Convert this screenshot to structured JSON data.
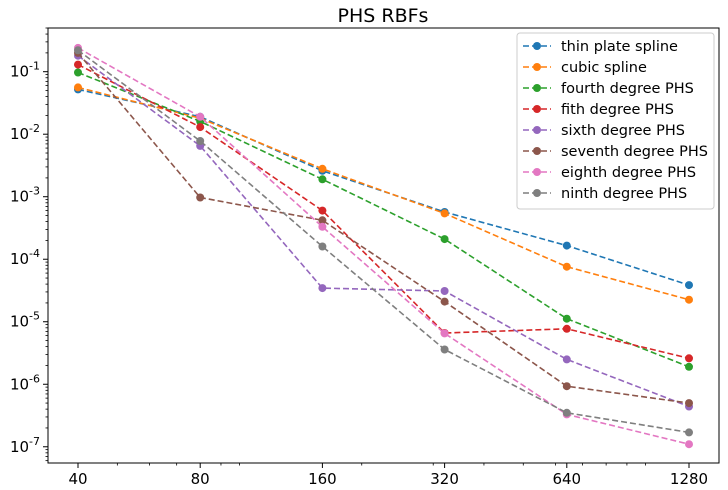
{
  "chart_data": {
    "type": "line",
    "title": "PHS RBFs",
    "xlabel": "",
    "ylabel": "",
    "x_scale": "log2",
    "y_scale": "log10",
    "x": [
      40,
      80,
      160,
      320,
      640,
      1280
    ],
    "x_tick_labels": [
      "40",
      "80",
      "160",
      "320",
      "640",
      "1280"
    ],
    "xlim": [
      40,
      1280
    ],
    "ylim": [
      5.5e-08,
      0.5
    ],
    "y_ticks": [
      1e-07,
      1e-06,
      1e-05,
      0.0001,
      0.001,
      0.01,
      0.1
    ],
    "y_tick_labels": [
      "10^-7",
      "10^-6",
      "10^-5",
      "10^-4",
      "10^-3",
      "10^-2",
      "10^-1"
    ],
    "grid": false,
    "legend_position": "top-right",
    "series": [
      {
        "name": "thin plate spline",
        "color": "#1f77b4",
        "values": [
          0.052,
          0.019,
          0.0026,
          0.00057,
          0.000165,
          3.85e-05
        ]
      },
      {
        "name": "cubic spline",
        "color": "#ff7f0e",
        "values": [
          0.056,
          0.018,
          0.0028,
          0.00054,
          7.6e-05,
          2.25e-05
        ]
      },
      {
        "name": "fourth degree PHS",
        "color": "#2ca02c",
        "values": [
          0.097,
          0.016,
          0.0019,
          0.00021,
          1.12e-05,
          1.9e-06
        ]
      },
      {
        "name": "fith degree PHS",
        "color": "#d62728",
        "values": [
          0.13,
          0.013,
          0.0006,
          6.6e-06,
          7.7e-06,
          2.6e-06
        ]
      },
      {
        "name": "sixth degree PHS",
        "color": "#9467bd",
        "values": [
          0.18,
          0.0065,
          3.45e-05,
          3.1e-05,
          2.5e-06,
          4.4e-07
        ]
      },
      {
        "name": "seventh degree PHS",
        "color": "#8c564b",
        "values": [
          0.2,
          0.00097,
          0.00042,
          2.1e-05,
          9.3e-07,
          5e-07
        ]
      },
      {
        "name": "eighth degree PHS",
        "color": "#e377c2",
        "values": [
          0.24,
          0.019,
          0.00033,
          6.5e-06,
          3.3e-07,
          1.1e-07
        ]
      },
      {
        "name": "ninth degree PHS",
        "color": "#7f7f7f",
        "values": [
          0.22,
          0.0078,
          0.00016,
          3.6e-06,
          3.5e-07,
          1.7e-07
        ]
      }
    ]
  }
}
